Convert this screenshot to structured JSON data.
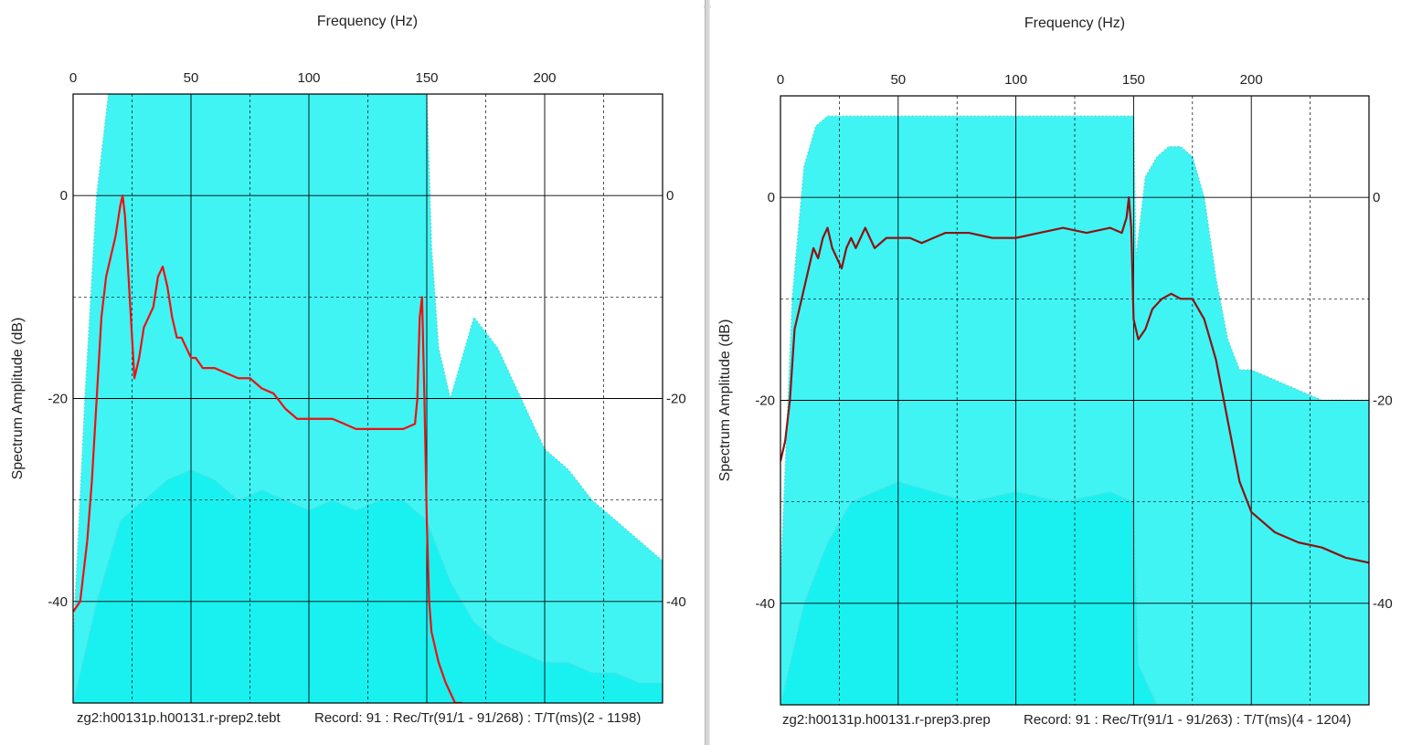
{
  "colors": {
    "envelope": "#00f0f0",
    "envelope_trace": "#58dcdc",
    "mean_left": "#ee1010",
    "mean_right": "#8a1414",
    "grid": "#000000"
  },
  "chart_data": [
    {
      "type": "line",
      "xlabel": "Frequency (Hz)",
      "ylabel": "Spectrum Amplitude (dB)",
      "xlim": [
        0,
        250
      ],
      "ylim": [
        -50,
        10
      ],
      "x_ticks": [
        "0",
        "50",
        "100",
        "150",
        "200"
      ],
      "y_ticks": [
        "0",
        "-20",
        "-40"
      ],
      "y_ticks_right": [
        "0",
        "-20",
        "-40"
      ],
      "grid": true,
      "footer_left": "zg2:h00131p.h00131.r-prep2.tebt",
      "footer_right": "Record: 91 : Rec/Tr(91/1 - 91/268) : T/T(ms)(2 - 1198)",
      "series": [
        {
          "x": [
            0,
            3,
            6,
            8,
            10,
            12,
            14,
            16,
            18,
            20,
            21,
            22,
            24,
            26,
            28,
            30,
            32,
            34,
            36,
            38,
            40,
            42,
            44,
            46,
            48,
            50,
            52,
            55,
            60,
            65,
            70,
            75,
            80,
            85,
            90,
            95,
            100,
            105,
            110,
            115,
            120,
            125,
            130,
            135,
            140,
            145,
            146,
            147,
            148,
            149,
            150,
            151,
            152,
            155,
            158,
            160,
            162,
            165
          ],
          "y": [
            -41,
            -40,
            -34,
            -28,
            -20,
            -12,
            -8,
            -6,
            -4,
            -1,
            0,
            -2,
            -10,
            -18,
            -16,
            -13,
            -12,
            -11,
            -8,
            -7,
            -9,
            -12,
            -14,
            -14,
            -15,
            -16,
            -16,
            -17,
            -17,
            -17.5,
            -18,
            -18,
            -19,
            -19.5,
            -21,
            -22,
            -22,
            -22,
            -22,
            -22.5,
            -23,
            -23,
            -23,
            -23,
            -23,
            -22.5,
            -20,
            -12,
            -10,
            -20,
            -32,
            -40,
            -43,
            -46,
            -48,
            -49,
            -50,
            -51
          ]
        },
        {
          "x": [
            0,
            5,
            10,
            15,
            20,
            25,
            30,
            40,
            50,
            60,
            70,
            80,
            90,
            100,
            110,
            120,
            130,
            140,
            150,
            152,
            155,
            160,
            170,
            180,
            190,
            200,
            210,
            220,
            230,
            240,
            250
          ],
          "y": [
            -44,
            -20,
            0,
            10,
            12,
            11,
            10,
            10,
            10,
            10,
            10,
            10,
            10,
            10,
            10,
            10,
            10,
            10,
            10,
            -5,
            -15,
            -20,
            -12,
            -15,
            -20,
            -25,
            -27,
            -30,
            -32,
            -34,
            -36
          ]
        },
        {
          "x": [
            0,
            10,
            20,
            30,
            40,
            50,
            60,
            70,
            80,
            90,
            100,
            110,
            120,
            130,
            140,
            150,
            160,
            170,
            180,
            190,
            200,
            210,
            220,
            230,
            240,
            250
          ],
          "y": [
            -50,
            -40,
            -32,
            -30,
            -28,
            -27,
            -28,
            -30,
            -29,
            -30,
            -31,
            -30,
            -31,
            -30,
            -30,
            -32,
            -38,
            -42,
            -44,
            -45,
            -46,
            -46,
            -47,
            -47,
            -48,
            -48
          ]
        }
      ]
    },
    {
      "type": "line",
      "xlabel": "Frequency (Hz)",
      "ylabel": "Spectrum Amplitude (dB)",
      "xlim": [
        0,
        250
      ],
      "ylim": [
        -50,
        10
      ],
      "x_ticks": [
        "0",
        "50",
        "100",
        "150",
        "200"
      ],
      "y_ticks": [
        "0",
        "-20",
        "-40"
      ],
      "y_ticks_right": [
        "0",
        "-20",
        "-40"
      ],
      "grid": true,
      "footer_left": "zg2:h00131p.h00131.r-prep3.prep",
      "footer_right": "Record: 91 : Rec/Tr(91/1 - 91/263) : T/T(ms)(4 - 1204)",
      "series": [
        {
          "x": [
            0,
            2,
            4,
            6,
            8,
            10,
            12,
            14,
            16,
            18,
            20,
            22,
            24,
            26,
            28,
            30,
            32,
            34,
            36,
            38,
            40,
            45,
            50,
            55,
            60,
            70,
            80,
            90,
            100,
            110,
            120,
            130,
            140,
            145,
            147,
            148,
            149,
            150,
            152,
            155,
            158,
            162,
            166,
            170,
            175,
            180,
            185,
            190,
            195,
            200,
            205,
            210,
            220,
            230,
            240,
            250
          ],
          "y": [
            -26,
            -24,
            -20,
            -13,
            -11,
            -9,
            -7,
            -5,
            -6,
            -4,
            -3,
            -5,
            -6,
            -7,
            -5,
            -4,
            -5,
            -4,
            -3,
            -4,
            -5,
            -4,
            -4,
            -4,
            -4.5,
            -3.5,
            -3.5,
            -4,
            -4,
            -3.5,
            -3,
            -3.5,
            -3,
            -3.5,
            -2,
            0,
            -3,
            -12,
            -14,
            -13,
            -11,
            -10,
            -9.5,
            -10,
            -10,
            -12,
            -16,
            -22,
            -28,
            -31,
            -32,
            -33,
            -34,
            -34.5,
            -35.5,
            -36
          ]
        },
        {
          "x": [
            0,
            5,
            10,
            15,
            20,
            30,
            50,
            80,
            100,
            120,
            140,
            150,
            151,
            155,
            160,
            165,
            170,
            175,
            180,
            185,
            190,
            195,
            200,
            210,
            220,
            230,
            240,
            250
          ],
          "y": [
            -38,
            -10,
            3,
            7,
            8,
            8,
            8,
            8,
            8,
            8,
            8,
            8,
            -6,
            2,
            4,
            5,
            5,
            4,
            0,
            -8,
            -14,
            -17,
            -17,
            -18,
            -19,
            -20,
            -20,
            -20
          ]
        },
        {
          "x": [
            0,
            5,
            10,
            20,
            30,
            50,
            80,
            100,
            120,
            140,
            150,
            152,
            160,
            170,
            180,
            190,
            195,
            200,
            210,
            220,
            230,
            240,
            250
          ],
          "y": [
            -50,
            -45,
            -40,
            -34,
            -30,
            -28,
            -30,
            -29,
            -30,
            -29,
            -30,
            -46,
            -50,
            -50,
            -50,
            -50,
            -50,
            -50,
            -50,
            -50,
            -50,
            -50,
            -50
          ]
        }
      ]
    }
  ]
}
